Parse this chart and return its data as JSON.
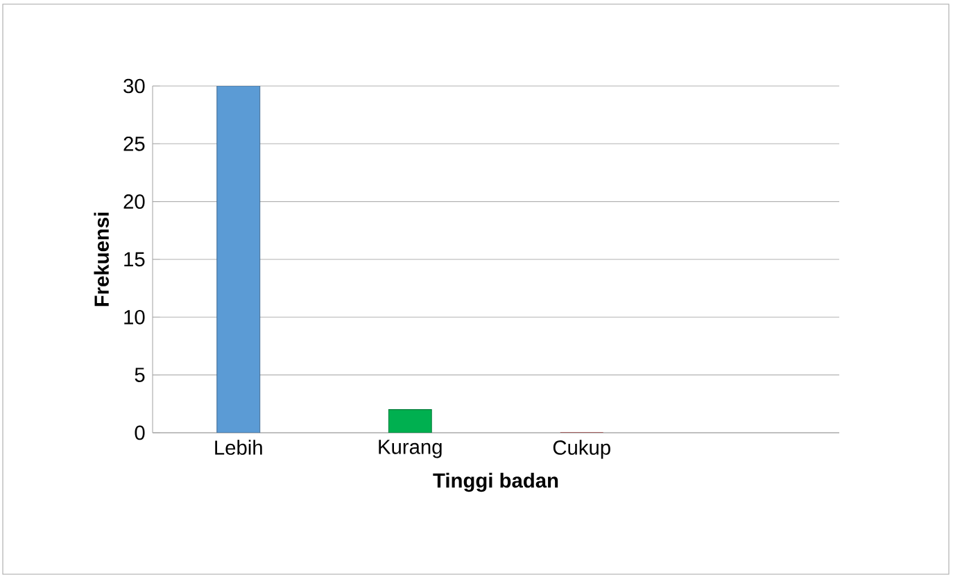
{
  "chart_data": {
    "type": "bar",
    "xlabel": "Tinggi badan",
    "ylabel": "Frekuensi",
    "categories": [
      "Lebih",
      "Kurang",
      "Cukup",
      null
    ],
    "values": [
      30,
      2,
      0,
      null
    ],
    "colors": [
      "#5b9bd5",
      "#00b050",
      "#c00000",
      "#808080"
    ],
    "ylim": [
      0,
      30
    ],
    "yticks": [
      0,
      5,
      10,
      15,
      20,
      25,
      30
    ],
    "grid": "y"
  }
}
